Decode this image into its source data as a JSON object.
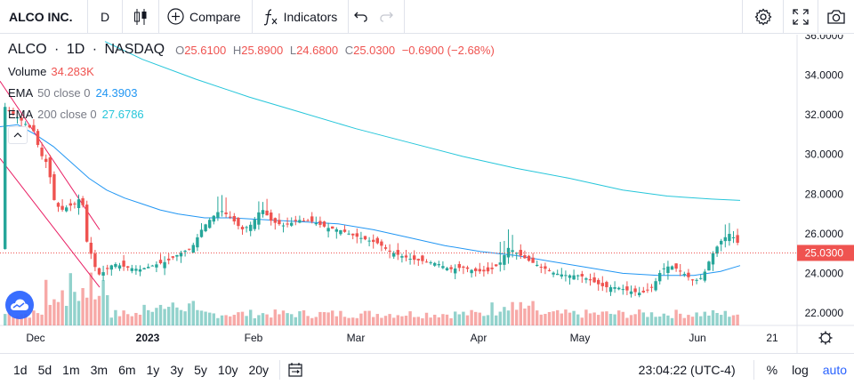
{
  "toolbar": {
    "symbol": "ALCO INC.",
    "interval": "D",
    "compare_label": "Compare",
    "indicators_label": "Indicators"
  },
  "legend": {
    "ticker": "ALCO",
    "interval": "1D",
    "exchange": "NASDAQ",
    "ohlc": {
      "o_key": "O",
      "o": "25.6100",
      "h_key": "H",
      "h": "25.8900",
      "l_key": "L",
      "l": "24.6800",
      "c_key": "C",
      "c": "25.0300",
      "change": "−0.6900 (−2.68%)"
    },
    "volume_label": "Volume",
    "volume": "34.283K",
    "ema50_label": "EMA",
    "ema50_params": "50 close 0",
    "ema50": "24.3903",
    "ema200_label": "EMA",
    "ema200_params": "200 close 0",
    "ema200": "27.6786"
  },
  "colors": {
    "up": "#26a69a",
    "down": "#ef5350",
    "ema50": "#2196f3",
    "ema200": "#26c6da",
    "trendline": "#e91e63",
    "accent": "#2962ff"
  },
  "price_axis": {
    "ticks": [
      "36.0000",
      "34.0000",
      "32.0000",
      "30.0000",
      "28.0000",
      "26.0000",
      "24.0000",
      "22.0000"
    ],
    "last_price": "25.0300"
  },
  "time_axis": {
    "ticks": [
      "Dec",
      "2023",
      "Feb",
      "Mar",
      "Apr",
      "May",
      "Jun",
      "21"
    ]
  },
  "bottom": {
    "ranges": [
      "1d",
      "5d",
      "1m",
      "3m",
      "6m",
      "1y",
      "3y",
      "5y",
      "10y",
      "20y"
    ],
    "clock": "23:04:22 (UTC-4)",
    "percent": "%",
    "log": "log",
    "auto": "auto"
  },
  "chart_data": {
    "type": "candlestick",
    "ylim": [
      21.5,
      36.2
    ],
    "ema50_tail": [
      31.5,
      31.2,
      30.6,
      30.0,
      29.4,
      28.9,
      28.5,
      28.2,
      27.9,
      27.7,
      27.5,
      27.3,
      27.1,
      26.95,
      26.8,
      26.7,
      26.6,
      26.55,
      26.5,
      26.45,
      26.4,
      26.35,
      26.3,
      26.25,
      26.2,
      26.1,
      26.0,
      25.9,
      25.7,
      25.55,
      25.4,
      25.25,
      25.1,
      25.0,
      24.9,
      24.8,
      24.75,
      24.7,
      24.6,
      24.45,
      24.3,
      24.2,
      24.15,
      24.2,
      24.3,
      24.39
    ],
    "ema200_tail": [
      36.2,
      35.5,
      35.0,
      34.5,
      34.0,
      33.6,
      33.2,
      32.8,
      32.4,
      32.0,
      31.6,
      31.2,
      30.8,
      30.4,
      30.0,
      29.7,
      29.4,
      29.1,
      28.8,
      28.5,
      28.25,
      28.0,
      27.85,
      27.75,
      27.68
    ]
  }
}
